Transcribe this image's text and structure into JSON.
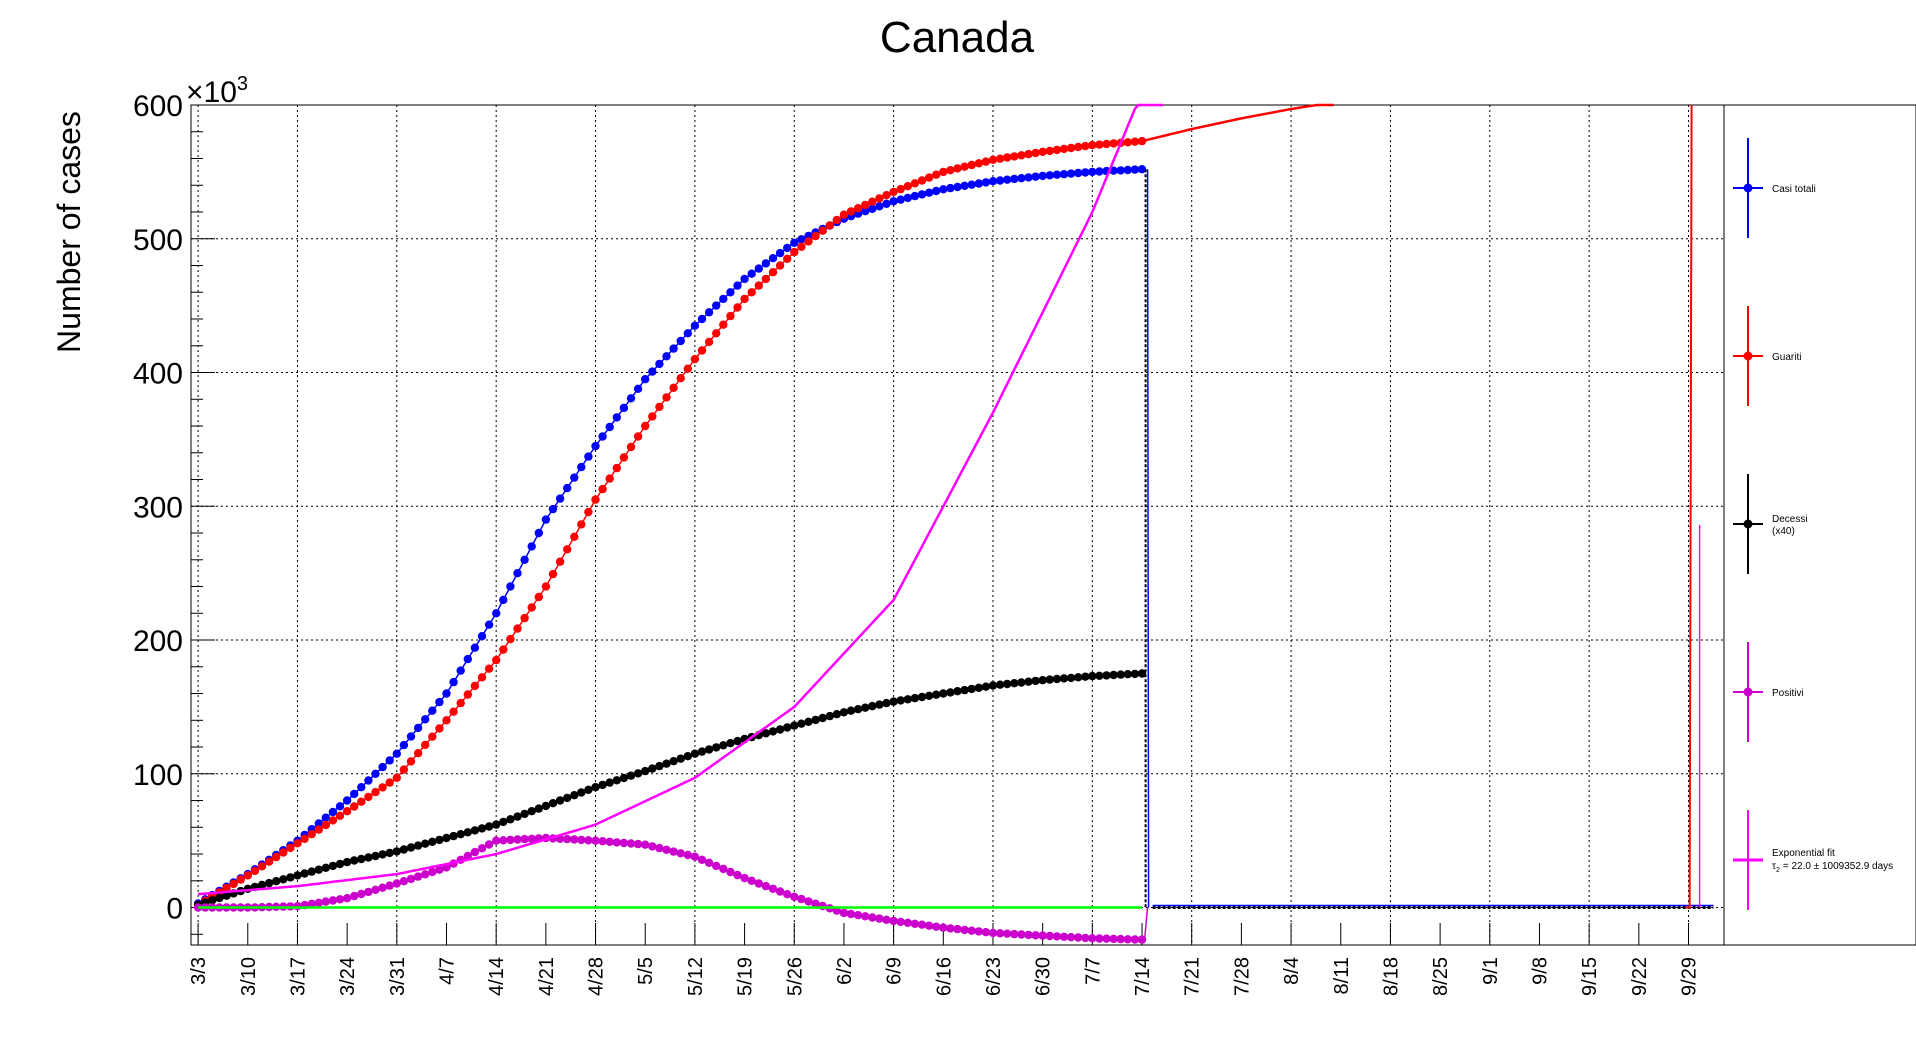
{
  "chart_data": {
    "type": "line",
    "title": "Canada",
    "ylabel": "Number of cases",
    "y_multiplier": "×10",
    "y_multiplier_exp": "3",
    "ylim": [
      -28,
      600
    ],
    "ytick_values": [
      0,
      100,
      200,
      300,
      400,
      500,
      600
    ],
    "ytick_labels": [
      "0",
      "100",
      "200",
      "300",
      "400",
      "500",
      "600"
    ],
    "xlim_days": [
      -1,
      215
    ],
    "xtick_days": [
      0,
      7,
      14,
      21,
      28,
      35,
      42,
      49,
      56,
      63,
      70,
      77,
      84,
      91,
      98,
      105,
      112,
      119,
      126,
      133,
      140,
      147,
      154,
      161,
      168,
      175,
      182,
      189,
      196,
      203,
      210
    ],
    "xtick_labels": [
      "3/3",
      "3/10",
      "3/17",
      "3/24",
      "3/31",
      "4/7",
      "4/14",
      "4/21",
      "4/28",
      "5/5",
      "5/12",
      "5/19",
      "5/26",
      "6/2",
      "6/9",
      "6/16",
      "6/23",
      "6/30",
      "7/7",
      "7/14",
      "7/21",
      "7/28",
      "8/4",
      "8/11",
      "8/18",
      "8/25",
      "9/1",
      "9/8",
      "9/15",
      "9/22",
      "9/29"
    ],
    "grid": true,
    "legend_position": "right",
    "series": [
      {
        "name": "Casi totali",
        "color": "#0000ff",
        "kind": "markers",
        "x": [
          0,
          7,
          14,
          21,
          28,
          35,
          42,
          49,
          56,
          63,
          70,
          77,
          84,
          91,
          98,
          105,
          112,
          119,
          126,
          133
        ],
        "y": [
          3,
          25,
          50,
          80,
          115,
          160,
          220,
          290,
          345,
          395,
          435,
          470,
          497,
          515,
          528,
          537,
          543,
          547,
          550,
          552
        ]
      },
      {
        "name": "Guariti",
        "color": "#ff0000",
        "kind": "markers",
        "x": [
          0,
          7,
          14,
          21,
          28,
          35,
          42,
          49,
          56,
          63,
          70,
          77,
          84,
          91,
          98,
          105,
          112,
          119,
          126,
          133
        ],
        "y": [
          2,
          24,
          48,
          72,
          97,
          140,
          185,
          240,
          305,
          360,
          410,
          455,
          490,
          518,
          535,
          550,
          559,
          565,
          570,
          573
        ]
      },
      {
        "name": "Decessi",
        "name_suffix": "(x40)",
        "color": "#000000",
        "kind": "markers",
        "x": [
          0,
          7,
          14,
          21,
          28,
          35,
          42,
          49,
          56,
          63,
          70,
          77,
          84,
          91,
          98,
          105,
          112,
          119,
          126,
          133
        ],
        "y": [
          2,
          14,
          24,
          34,
          42,
          52,
          62,
          76,
          90,
          102,
          115,
          126,
          136,
          146,
          154,
          160,
          166,
          170,
          173,
          175
        ]
      },
      {
        "name": "Positivi",
        "color": "#cc00cc",
        "kind": "markers",
        "x": [
          0,
          7,
          14,
          21,
          28,
          35,
          42,
          49,
          56,
          63,
          70,
          77,
          84,
          91,
          98,
          105,
          112,
          119,
          126,
          133
        ],
        "y": [
          0,
          0,
          1,
          7,
          18,
          30,
          50,
          52,
          50,
          47,
          38,
          22,
          8,
          -4,
          -10,
          -15,
          -19,
          -21,
          -23,
          -24
        ]
      },
      {
        "name": "Exponential fit",
        "color": "#ff00ff",
        "kind": "line",
        "x": [
          0,
          14,
          28,
          42,
          56,
          70,
          84,
          98,
          112,
          126,
          133,
          136
        ],
        "y": [
          10,
          16,
          25,
          40,
          62,
          97,
          150,
          230,
          370,
          520,
          610,
          670
        ]
      },
      {
        "name": "Guariti (extension)",
        "color": "#ff0000",
        "kind": "line",
        "x": [
          133,
          140,
          147,
          154,
          160
        ],
        "y": [
          573,
          582,
          590,
          597,
          602
        ]
      },
      {
        "name": "Positivi (baseline)",
        "color": "#00ff00",
        "kind": "line",
        "x": [
          0,
          133
        ],
        "y": [
          0,
          0
        ]
      }
    ],
    "annotations": {
      "exp_fit_line1": "Exponential fit",
      "exp_fit_line2_tau": "τ",
      "exp_fit_line2_sub": "2",
      "exp_fit_line2_rest": "= 22.0   ± 1009352.9 days"
    }
  }
}
